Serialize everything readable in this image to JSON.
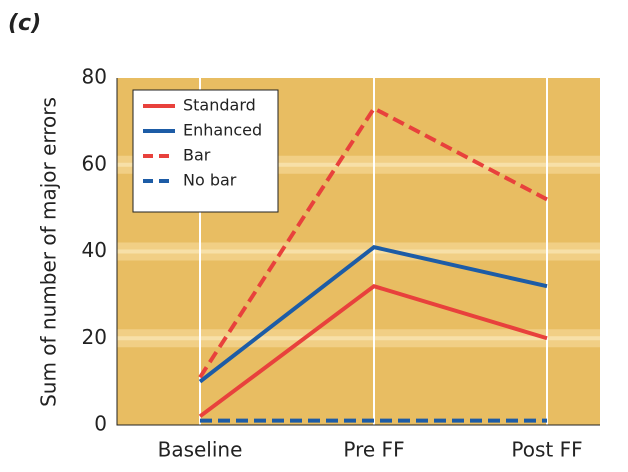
{
  "chart_data": {
    "type": "line",
    "title": "(c)",
    "y_label": "Sum of number of major errors",
    "categories": [
      "Baseline",
      "Pre FF",
      "Post FF"
    ],
    "series": [
      {
        "name": "Standard",
        "color": "#e8413c",
        "dashed": false,
        "values": [
          2,
          32,
          20
        ]
      },
      {
        "name": "Enhanced",
        "color": "#1d5ca6",
        "dashed": false,
        "values": [
          10,
          41,
          32
        ]
      },
      {
        "name": "Bar",
        "color": "#e8413c",
        "dashed": true,
        "values": [
          11,
          73,
          52
        ]
      },
      {
        "name": "No bar",
        "color": "#1d5ca6",
        "dashed": true,
        "values": [
          1,
          1,
          1
        ]
      }
    ],
    "ylim": [
      0,
      80
    ],
    "yticks": [
      0,
      20,
      40,
      60,
      80
    ],
    "grid": true,
    "legend": "upper left"
  }
}
